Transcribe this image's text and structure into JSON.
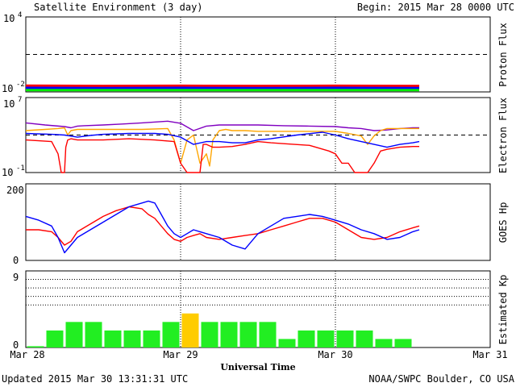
{
  "header": {
    "title": "Satellite Environment (3 day)",
    "begin": "Begin:  2015 Mar 28 0000 UTC"
  },
  "footer": {
    "updated": "Updated 2015 Mar 30 13:31:31 UTC",
    "credit": "NOAA/SWPC Boulder, CO USA",
    "xlabel": "Universal Time"
  },
  "x_ticks": [
    "Mar 28",
    "Mar 29",
    "Mar 30",
    "Mar 31"
  ],
  "colors": {
    "red": "#ff0000",
    "blue": "#0000ff",
    "green": "#00ee00",
    "orange": "#ffa500",
    "purple": "#8000c0",
    "kp_green": "#22ee22",
    "kp_yellow": "#ffcc00"
  },
  "chart_data": [
    {
      "type": "line",
      "ylabel": "Proton Flux",
      "yscale": "log",
      "ylim": [
        0.01,
        10000
      ],
      "ytick_labels": [
        "10^4",
        "10^-2"
      ],
      "threshold": 10,
      "xlim_hours": [
        0,
        72
      ],
      "series": [
        {
          "color": "#ff0000",
          "x": [
            0,
            12,
            24,
            36,
            48,
            61
          ],
          "y": [
            0.032,
            0.03,
            0.031,
            0.03,
            0.031,
            0.03
          ]
        },
        {
          "color": "#0000ff",
          "x": [
            0,
            12,
            24,
            36,
            48,
            61
          ],
          "y": [
            0.021,
            0.02,
            0.021,
            0.02,
            0.021,
            0.02
          ]
        },
        {
          "color": "#00ee00",
          "x": [
            0,
            12,
            24,
            36,
            48,
            61
          ],
          "y": [
            0.014,
            0.014,
            0.014,
            0.014,
            0.014,
            0.014
          ]
        }
      ]
    },
    {
      "type": "line",
      "ylabel": "Electron Flux",
      "yscale": "log",
      "ylim": [
        0.1,
        10000000
      ],
      "ytick_labels": [
        "10^7",
        "10^-1"
      ],
      "threshold": 1000,
      "xlim_hours": [
        0,
        72
      ],
      "series": [
        {
          "color": "#8000c0",
          "x": [
            0,
            3,
            6,
            7,
            8,
            9,
            12,
            15,
            18,
            22,
            24,
            26,
            28,
            30,
            34,
            36,
            40,
            44,
            48,
            50,
            52,
            54,
            56,
            58,
            60,
            61
          ],
          "y": [
            20000,
            12000,
            8000,
            6000,
            9000,
            10000,
            12000,
            15000,
            20000,
            30000,
            18000,
            3000,
            9000,
            12000,
            12000,
            12000,
            10000,
            9000,
            8000,
            6000,
            5000,
            3000,
            3500,
            5000,
            6000,
            6000
          ]
        },
        {
          "color": "#ffa500",
          "x": [
            0,
            3,
            5,
            6,
            6.5,
            7,
            8,
            9,
            10,
            12,
            18,
            22,
            23,
            24,
            25,
            26,
            27,
            28,
            28.5,
            29,
            30,
            31,
            32,
            34,
            36,
            40,
            44,
            48,
            50,
            52,
            53,
            54,
            55,
            56,
            58,
            60,
            61
          ],
          "y": [
            3000,
            4000,
            5000,
            6000,
            1000,
            3000,
            4000,
            4000,
            4000,
            4000,
            4000,
            5000,
            300,
            1,
            300,
            1000,
            1,
            10,
            0.5,
            300,
            3000,
            4000,
            3000,
            3000,
            2500,
            2500,
            2500,
            2500,
            1500,
            800,
            100,
            800,
            3000,
            5000,
            5000,
            5000,
            5000
          ]
        },
        {
          "color": "#0000ff",
          "x": [
            0,
            4,
            6,
            8,
            10,
            12,
            16,
            20,
            22,
            24,
            26,
            28,
            30,
            32,
            34,
            36,
            38,
            42,
            46,
            48,
            50,
            52,
            54,
            56,
            58,
            60,
            61
          ],
          "y": [
            1500,
            1200,
            1000,
            600,
            900,
            1200,
            1500,
            1500,
            1200,
            600,
            100,
            200,
            200,
            150,
            150,
            300,
            400,
            1000,
            2000,
            1000,
            400,
            200,
            100,
            50,
            100,
            150,
            200
          ]
        },
        {
          "color": "#ff0000",
          "x": [
            0,
            4,
            5,
            5.5,
            6,
            6.2,
            6.5,
            7,
            8,
            10,
            12,
            16,
            20,
            23,
            24,
            25,
            25.5,
            26,
            26.5,
            27,
            27.5,
            28,
            29,
            30,
            32,
            34,
            36,
            38,
            40,
            44,
            47,
            48,
            49,
            50,
            51,
            52,
            53,
            54,
            55,
            56,
            58,
            60,
            61
          ],
          "y": [
            300,
            200,
            10,
            0.1,
            0.1,
            50,
            300,
            400,
            300,
            300,
            300,
            400,
            300,
            200,
            1,
            0.1,
            0.1,
            0.1,
            0.1,
            0.1,
            100,
            100,
            50,
            50,
            60,
            100,
            200,
            150,
            120,
            80,
            20,
            10,
            1,
            1,
            0.1,
            0.1,
            0.1,
            1,
            20,
            30,
            50,
            60,
            60
          ]
        }
      ]
    },
    {
      "type": "line",
      "ylabel": "GOES Hp",
      "ylim": [
        0,
        200
      ],
      "yticks": [
        0,
        200
      ],
      "xlim_hours": [
        0,
        72
      ],
      "series": [
        {
          "color": "#ff0000",
          "x": [
            0,
            2,
            4,
            5,
            6,
            7,
            8,
            10,
            12,
            14,
            16,
            18,
            19,
            20,
            21,
            22,
            23,
            24,
            25,
            26,
            27,
            28,
            30,
            32,
            34,
            36,
            38,
            40,
            42,
            44,
            46,
            48,
            50,
            52,
            54,
            56,
            58,
            60,
            61
          ],
          "y": [
            80,
            80,
            75,
            60,
            40,
            50,
            75,
            95,
            115,
            130,
            140,
            135,
            120,
            110,
            90,
            70,
            55,
            50,
            60,
            65,
            70,
            60,
            55,
            60,
            65,
            70,
            80,
            90,
            100,
            110,
            110,
            100,
            80,
            60,
            55,
            60,
            75,
            85,
            90
          ]
        },
        {
          "color": "#0000ff",
          "x": [
            0,
            2,
            4,
            5,
            6,
            7,
            8,
            10,
            12,
            14,
            16,
            18,
            19,
            20,
            21,
            22,
            23,
            24,
            25,
            26,
            27,
            28,
            30,
            32,
            34,
            36,
            38,
            40,
            42,
            44,
            46,
            48,
            50,
            52,
            54,
            56,
            58,
            60,
            61
          ],
          "y": [
            115,
            105,
            90,
            60,
            20,
            40,
            60,
            80,
            100,
            120,
            140,
            150,
            155,
            150,
            120,
            90,
            70,
            60,
            70,
            80,
            75,
            70,
            60,
            40,
            30,
            70,
            90,
            110,
            115,
            120,
            115,
            105,
            95,
            80,
            70,
            55,
            60,
            75,
            80
          ]
        }
      ]
    },
    {
      "type": "bar",
      "ylabel": "Estimated Kp",
      "ylim": [
        0,
        9
      ],
      "yticks": [
        0,
        9
      ],
      "gridlines": [
        5,
        6,
        7,
        8,
        9
      ],
      "bar_width_hours": 3,
      "x_start_hours": [
        0,
        3,
        6,
        9,
        12,
        15,
        18,
        21,
        24,
        27,
        30,
        33,
        36,
        39,
        42,
        45,
        48,
        51,
        54,
        57
      ],
      "values": [
        0,
        2,
        3,
        3,
        2,
        2,
        2,
        3,
        4,
        3,
        3,
        3,
        3,
        1,
        2,
        2,
        2,
        2,
        1,
        1
      ],
      "colors": [
        "#22ee22",
        "#22ee22",
        "#22ee22",
        "#22ee22",
        "#22ee22",
        "#22ee22",
        "#22ee22",
        "#22ee22",
        "#ffcc00",
        "#22ee22",
        "#22ee22",
        "#22ee22",
        "#22ee22",
        "#22ee22",
        "#22ee22",
        "#22ee22",
        "#22ee22",
        "#22ee22",
        "#22ee22",
        "#22ee22"
      ]
    }
  ]
}
